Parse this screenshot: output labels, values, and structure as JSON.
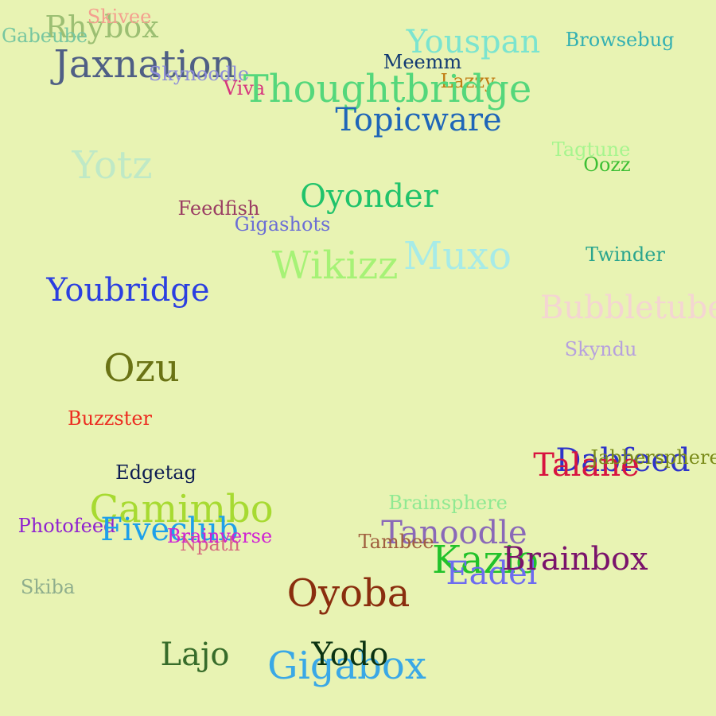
{
  "words": [
    {
      "text": "Rhybox",
      "color": "#9cbf73"
    },
    {
      "text": "Skivee",
      "color": "#f4a08f"
    },
    {
      "text": "Gabeube",
      "color": "#77c6a0"
    },
    {
      "text": "Jaxnation",
      "color": "#4f5f85"
    },
    {
      "text": "Skynoodle",
      "color": "#8d8dd9"
    },
    {
      "text": "Viva",
      "color": "#d6357e"
    },
    {
      "text": "Youspan",
      "color": "#7be4cf"
    },
    {
      "text": "Browsebug",
      "color": "#33b0b2"
    },
    {
      "text": "Meemm",
      "color": "#123a72"
    },
    {
      "text": "Lazzy",
      "color": "#c17d14"
    },
    {
      "text": "Thoughtbridge",
      "color": "#54d77b"
    },
    {
      "text": "Topicware",
      "color": "#1f66b8"
    },
    {
      "text": "Yotz",
      "color": "#bfe9c6"
    },
    {
      "text": "Tagtune",
      "color": "#a6f58e"
    },
    {
      "text": "Oozz",
      "color": "#3dbf34"
    },
    {
      "text": "Oyonder",
      "color": "#20c36b"
    },
    {
      "text": "Feedfish",
      "color": "#9a3d63"
    },
    {
      "text": "Gigashots",
      "color": "#6b6ed5"
    },
    {
      "text": "Wikizz",
      "color": "#a6f276"
    },
    {
      "text": "Muxo",
      "color": "#a7ebe7"
    },
    {
      "text": "Twinder",
      "color": "#2aa58e"
    },
    {
      "text": "Youbridge",
      "color": "#2b3fe0"
    },
    {
      "text": "Bubbletube",
      "color": "#f4d5d2"
    },
    {
      "text": "Skyndu",
      "color": "#b6a0de"
    },
    {
      "text": "Ozu",
      "color": "#6a7314"
    },
    {
      "text": "Buzzster",
      "color": "#ec2b20"
    },
    {
      "text": "Dabfeed",
      "color": "#2d33c9"
    },
    {
      "text": "Talane",
      "color": "#d8143f"
    },
    {
      "text": "Jabbersphere",
      "color": "#7a8b19"
    },
    {
      "text": "Edgetag",
      "color": "#0d1c52"
    },
    {
      "text": "Camimbo",
      "color": "#a7da31"
    },
    {
      "text": "Brainsphere",
      "color": "#8fe992"
    },
    {
      "text": "Photofeed",
      "color": "#8f20d0"
    },
    {
      "text": "Fiveclub",
      "color": "#1ea0ea"
    },
    {
      "text": "Npath",
      "color": "#d66a7f"
    },
    {
      "text": "Brainverse",
      "color": "#d023d3"
    },
    {
      "text": "Tanoodle",
      "color": "#8a69b8"
    },
    {
      "text": "Tambee",
      "color": "#a05f3f"
    },
    {
      "text": "Kazio",
      "color": "#21c22a"
    },
    {
      "text": "Eadel",
      "color": "#6d6bf0"
    },
    {
      "text": "Brainbox",
      "color": "#7a136b"
    },
    {
      "text": "Skiba",
      "color": "#8fae8d"
    },
    {
      "text": "Oyoba",
      "color": "#8a2e0e"
    },
    {
      "text": "Lajo",
      "color": "#376c2a"
    },
    {
      "text": "Gigabox",
      "color": "#3aa8e6"
    },
    {
      "text": "Yodo",
      "color": "#0b3311"
    }
  ]
}
